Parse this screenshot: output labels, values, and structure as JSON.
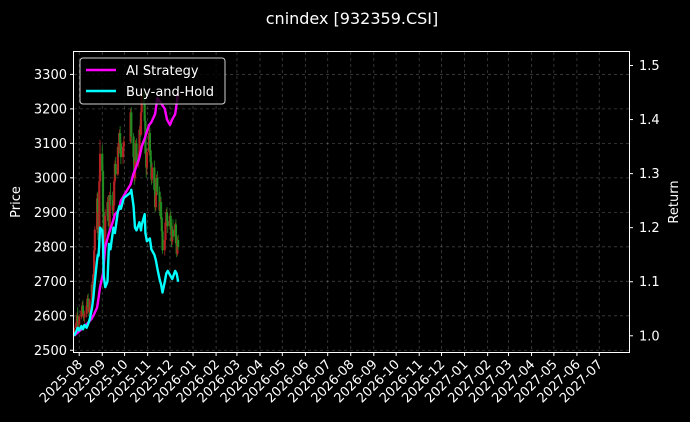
{
  "chart_data": {
    "type": "line",
    "title": "cnindex [932359.CSI]",
    "xlabel": "",
    "ylabel": "Price",
    "y2label": "Return",
    "x_ticks": [
      "2025-08",
      "2025-09",
      "2025-10",
      "2025-11",
      "2025-12",
      "2026-01",
      "2026-02",
      "2026-03",
      "2026-04",
      "2026-05",
      "2026-06",
      "2026-07",
      "2026-08",
      "2026-09",
      "2026-10",
      "2026-11",
      "2026-12",
      "2027-01",
      "2027-02",
      "2027-03",
      "2027-04",
      "2027-05",
      "2027-06",
      "2027-07"
    ],
    "xlim": [
      "2025-07-25",
      "2027-08-10"
    ],
    "ylim": [
      2495,
      3365
    ],
    "y_ticks": [
      2500,
      2600,
      2700,
      2800,
      2900,
      3000,
      3100,
      3200,
      3300
    ],
    "y2lim": [
      0.97,
      1.525
    ],
    "y2_ticks": [
      "1.0",
      "1.1",
      "1.2",
      "1.3",
      "1.4",
      "1.5"
    ],
    "grid": true,
    "legend_position": "top-left",
    "candles": {
      "colors": {
        "up": "#b22222",
        "down": "#228b22"
      },
      "bars": [
        {
          "date": "2025-07-25",
          "open": 2550,
          "high": 2572,
          "low": 2540,
          "close": 2565
        },
        {
          "date": "2025-07-28",
          "open": 2565,
          "high": 2590,
          "low": 2555,
          "close": 2580
        },
        {
          "date": "2025-07-29",
          "open": 2580,
          "high": 2610,
          "low": 2570,
          "close": 2600
        },
        {
          "date": "2025-07-30",
          "open": 2600,
          "high": 2625,
          "low": 2570,
          "close": 2585
        },
        {
          "date": "2025-07-31",
          "open": 2585,
          "high": 2600,
          "low": 2560,
          "close": 2575
        },
        {
          "date": "2025-08-01",
          "open": 2575,
          "high": 2605,
          "low": 2565,
          "close": 2598
        },
        {
          "date": "2025-08-04",
          "open": 2598,
          "high": 2625,
          "low": 2590,
          "close": 2615
        },
        {
          "date": "2025-08-05",
          "open": 2615,
          "high": 2640,
          "low": 2600,
          "close": 2630
        },
        {
          "date": "2025-08-06",
          "open": 2630,
          "high": 2645,
          "low": 2600,
          "close": 2610
        },
        {
          "date": "2025-08-07",
          "open": 2610,
          "high": 2620,
          "low": 2585,
          "close": 2595
        },
        {
          "date": "2025-08-08",
          "open": 2595,
          "high": 2615,
          "low": 2580,
          "close": 2605
        },
        {
          "date": "2025-08-11",
          "open": 2605,
          "high": 2640,
          "low": 2595,
          "close": 2630
        },
        {
          "date": "2025-08-12",
          "open": 2630,
          "high": 2660,
          "low": 2620,
          "close": 2650
        },
        {
          "date": "2025-08-13",
          "open": 2650,
          "high": 2665,
          "low": 2615,
          "close": 2625
        },
        {
          "date": "2025-08-14",
          "open": 2625,
          "high": 2640,
          "low": 2600,
          "close": 2610
        },
        {
          "date": "2025-08-15",
          "open": 2610,
          "high": 2650,
          "low": 2605,
          "close": 2645
        },
        {
          "date": "2025-08-18",
          "open": 2645,
          "high": 2700,
          "low": 2635,
          "close": 2690
        },
        {
          "date": "2025-08-19",
          "open": 2690,
          "high": 2720,
          "low": 2660,
          "close": 2670
        },
        {
          "date": "2025-08-20",
          "open": 2670,
          "high": 2730,
          "low": 2665,
          "close": 2720
        },
        {
          "date": "2025-08-21",
          "open": 2720,
          "high": 2800,
          "low": 2710,
          "close": 2790
        },
        {
          "date": "2025-08-22",
          "open": 2790,
          "high": 2860,
          "low": 2770,
          "close": 2850
        },
        {
          "date": "2025-08-25",
          "open": 2850,
          "high": 2955,
          "low": 2840,
          "close": 2940
        },
        {
          "date": "2025-08-26",
          "open": 2940,
          "high": 2960,
          "low": 2880,
          "close": 2900
        },
        {
          "date": "2025-08-27",
          "open": 2900,
          "high": 2935,
          "low": 2800,
          "close": 2820
        },
        {
          "date": "2025-08-28",
          "open": 2820,
          "high": 3010,
          "low": 2815,
          "close": 2990
        },
        {
          "date": "2025-08-29",
          "open": 2990,
          "high": 3110,
          "low": 2980,
          "close": 3070
        },
        {
          "date": "2025-09-01",
          "open": 3070,
          "high": 3095,
          "low": 3000,
          "close": 3020
        },
        {
          "date": "2025-09-02",
          "open": 3020,
          "high": 3040,
          "low": 2880,
          "close": 2900
        },
        {
          "date": "2025-09-03",
          "open": 2900,
          "high": 2920,
          "low": 2790,
          "close": 2810
        },
        {
          "date": "2025-09-04",
          "open": 2810,
          "high": 2850,
          "low": 2760,
          "close": 2830
        },
        {
          "date": "2025-09-05",
          "open": 2830,
          "high": 2910,
          "low": 2820,
          "close": 2890
        },
        {
          "date": "2025-09-08",
          "open": 2890,
          "high": 2945,
          "low": 2875,
          "close": 2930
        },
        {
          "date": "2025-09-09",
          "open": 2930,
          "high": 2950,
          "low": 2860,
          "close": 2875
        },
        {
          "date": "2025-09-10",
          "open": 2875,
          "high": 2900,
          "low": 2840,
          "close": 2860
        },
        {
          "date": "2025-09-11",
          "open": 2860,
          "high": 2960,
          "low": 2855,
          "close": 2950
        },
        {
          "date": "2025-09-12",
          "open": 2950,
          "high": 2985,
          "low": 2920,
          "close": 2935
        },
        {
          "date": "2025-09-15",
          "open": 2935,
          "high": 2960,
          "low": 2890,
          "close": 2905
        },
        {
          "date": "2025-09-16",
          "open": 2905,
          "high": 2930,
          "low": 2870,
          "close": 2920
        },
        {
          "date": "2025-09-17",
          "open": 2920,
          "high": 3000,
          "low": 2910,
          "close": 2990
        },
        {
          "date": "2025-09-18",
          "open": 2990,
          "high": 3050,
          "low": 2980,
          "close": 3040
        },
        {
          "date": "2025-09-19",
          "open": 3040,
          "high": 3060,
          "low": 3000,
          "close": 3010
        },
        {
          "date": "2025-09-22",
          "open": 3010,
          "high": 3100,
          "low": 3005,
          "close": 3090
        },
        {
          "date": "2025-09-23",
          "open": 3090,
          "high": 3130,
          "low": 3060,
          "close": 3080
        },
        {
          "date": "2025-09-24",
          "open": 3080,
          "high": 3140,
          "low": 3070,
          "close": 3130
        },
        {
          "date": "2025-09-25",
          "open": 3130,
          "high": 3150,
          "low": 3090,
          "close": 3100
        },
        {
          "date": "2025-09-26",
          "open": 3100,
          "high": 3110,
          "low": 3040,
          "close": 3060
        },
        {
          "date": "2025-09-29",
          "open": 3060,
          "high": 3100,
          "low": 3040,
          "close": 3090
        },
        {
          "date": "2025-09-30",
          "open": 3090,
          "high": 3120,
          "low": 3070,
          "close": 3105
        },
        {
          "date": "2025-10-09",
          "open": 3105,
          "high": 3200,
          "low": 3100,
          "close": 3190
        },
        {
          "date": "2025-10-10",
          "open": 3190,
          "high": 3205,
          "low": 3100,
          "close": 3120
        },
        {
          "date": "2025-10-13",
          "open": 3120,
          "high": 3130,
          "low": 3040,
          "close": 3060
        },
        {
          "date": "2025-10-14",
          "open": 3060,
          "high": 3080,
          "low": 2980,
          "close": 3000
        },
        {
          "date": "2025-10-15",
          "open": 3000,
          "high": 3060,
          "low": 2990,
          "close": 3050
        },
        {
          "date": "2025-10-16",
          "open": 3050,
          "high": 3110,
          "low": 3040,
          "close": 3100
        },
        {
          "date": "2025-10-17",
          "open": 3100,
          "high": 3115,
          "low": 3030,
          "close": 3045
        },
        {
          "date": "2025-10-20",
          "open": 3045,
          "high": 3080,
          "low": 3030,
          "close": 3070
        },
        {
          "date": "2025-10-21",
          "open": 3070,
          "high": 3150,
          "low": 3065,
          "close": 3140
        },
        {
          "date": "2025-10-22",
          "open": 3140,
          "high": 3170,
          "low": 3110,
          "close": 3125
        },
        {
          "date": "2025-10-23",
          "open": 3125,
          "high": 3200,
          "low": 3120,
          "close": 3190
        },
        {
          "date": "2025-10-24",
          "open": 3190,
          "high": 3260,
          "low": 3180,
          "close": 3245
        },
        {
          "date": "2025-10-27",
          "open": 3245,
          "high": 3275,
          "low": 3200,
          "close": 3215
        },
        {
          "date": "2025-10-28",
          "open": 3215,
          "high": 3240,
          "low": 3150,
          "close": 3165
        },
        {
          "date": "2025-10-29",
          "open": 3165,
          "high": 3180,
          "low": 3050,
          "close": 3070
        },
        {
          "date": "2025-10-30",
          "open": 3070,
          "high": 3090,
          "low": 3000,
          "close": 3030
        },
        {
          "date": "2025-10-31",
          "open": 3030,
          "high": 3085,
          "low": 3010,
          "close": 3075
        },
        {
          "date": "2025-11-03",
          "open": 3075,
          "high": 3140,
          "low": 3065,
          "close": 3130
        },
        {
          "date": "2025-11-04",
          "open": 3130,
          "high": 3145,
          "low": 3070,
          "close": 3080
        },
        {
          "date": "2025-11-05",
          "open": 3080,
          "high": 3100,
          "low": 3030,
          "close": 3045
        },
        {
          "date": "2025-11-06",
          "open": 3045,
          "high": 3060,
          "low": 2980,
          "close": 2995
        },
        {
          "date": "2025-11-07",
          "open": 2995,
          "high": 3040,
          "low": 2985,
          "close": 3030
        },
        {
          "date": "2025-11-10",
          "open": 3030,
          "high": 3050,
          "low": 2950,
          "close": 2965
        },
        {
          "date": "2025-11-11",
          "open": 2965,
          "high": 2980,
          "low": 2900,
          "close": 2915
        },
        {
          "date": "2025-11-12",
          "open": 2915,
          "high": 2960,
          "low": 2905,
          "close": 2950
        },
        {
          "date": "2025-11-13",
          "open": 2950,
          "high": 3010,
          "low": 2940,
          "close": 3000
        },
        {
          "date": "2025-11-14",
          "open": 3000,
          "high": 3020,
          "low": 2950,
          "close": 2960
        },
        {
          "date": "2025-11-17",
          "open": 2960,
          "high": 2975,
          "low": 2890,
          "close": 2905
        },
        {
          "date": "2025-11-18",
          "open": 2905,
          "high": 2940,
          "low": 2880,
          "close": 2930
        },
        {
          "date": "2025-11-19",
          "open": 2930,
          "high": 2945,
          "low": 2870,
          "close": 2885
        },
        {
          "date": "2025-11-20",
          "open": 2885,
          "high": 2900,
          "low": 2830,
          "close": 2845
        },
        {
          "date": "2025-11-21",
          "open": 2845,
          "high": 2860,
          "low": 2780,
          "close": 2790
        },
        {
          "date": "2025-11-24",
          "open": 2790,
          "high": 2830,
          "low": 2775,
          "close": 2820
        },
        {
          "date": "2025-11-25",
          "open": 2820,
          "high": 2880,
          "low": 2810,
          "close": 2870
        },
        {
          "date": "2025-11-26",
          "open": 2870,
          "high": 2910,
          "low": 2855,
          "close": 2900
        },
        {
          "date": "2025-11-27",
          "open": 2900,
          "high": 2915,
          "low": 2860,
          "close": 2875
        },
        {
          "date": "2025-11-28",
          "open": 2875,
          "high": 2890,
          "low": 2840,
          "close": 2860
        },
        {
          "date": "2025-12-01",
          "open": 2860,
          "high": 2900,
          "low": 2850,
          "close": 2890
        },
        {
          "date": "2025-12-02",
          "open": 2890,
          "high": 2905,
          "low": 2840,
          "close": 2850
        },
        {
          "date": "2025-12-03",
          "open": 2850,
          "high": 2870,
          "low": 2800,
          "close": 2815
        },
        {
          "date": "2025-12-04",
          "open": 2815,
          "high": 2860,
          "low": 2805,
          "close": 2850
        },
        {
          "date": "2025-12-05",
          "open": 2850,
          "high": 2880,
          "low": 2820,
          "close": 2830
        },
        {
          "date": "2025-12-08",
          "open": 2830,
          "high": 2870,
          "low": 2820,
          "close": 2865
        },
        {
          "date": "2025-12-09",
          "open": 2865,
          "high": 2880,
          "low": 2800,
          "close": 2810
        },
        {
          "date": "2025-12-10",
          "open": 2810,
          "high": 2830,
          "low": 2770,
          "close": 2780
        },
        {
          "date": "2025-12-11",
          "open": 2780,
          "high": 2830,
          "low": 2775,
          "close": 2820
        },
        {
          "date": "2025-12-12",
          "open": 2820,
          "high": 2835,
          "low": 2790,
          "close": 2800
        }
      ]
    },
    "series": [
      {
        "name": "AI Strategy",
        "color": "#ff00ff",
        "axis": "right",
        "x": [
          "2025-07-25",
          "2025-07-30",
          "2025-08-04",
          "2025-08-08",
          "2025-08-13",
          "2025-08-18",
          "2025-08-21",
          "2025-08-25",
          "2025-08-27",
          "2025-08-29",
          "2025-09-02",
          "2025-09-05",
          "2025-09-10",
          "2025-09-15",
          "2025-09-18",
          "2025-09-23",
          "2025-09-26",
          "2025-10-09",
          "2025-10-13",
          "2025-10-16",
          "2025-10-21",
          "2025-10-24",
          "2025-10-28",
          "2025-11-03",
          "2025-11-06",
          "2025-11-11",
          "2025-11-14",
          "2025-11-19",
          "2025-11-24",
          "2025-11-27",
          "2025-12-01",
          "2025-12-04",
          "2025-12-08",
          "2025-12-12"
        ],
        "y": [
          1.0,
          1.006,
          1.012,
          1.018,
          1.024,
          1.032,
          1.04,
          1.052,
          1.07,
          1.09,
          1.115,
          1.165,
          1.19,
          1.21,
          1.225,
          1.232,
          1.25,
          1.28,
          1.3,
          1.31,
          1.33,
          1.35,
          1.365,
          1.39,
          1.395,
          1.41,
          1.44,
          1.43,
          1.42,
          1.4,
          1.39,
          1.4,
          1.41,
          1.45
        ]
      },
      {
        "name": "Buy-and-Hold",
        "color": "#00ffff",
        "axis": "right",
        "x": [
          "2025-07-25",
          "2025-07-28",
          "2025-07-30",
          "2025-08-01",
          "2025-08-04",
          "2025-08-06",
          "2025-08-08",
          "2025-08-11",
          "2025-08-13",
          "2025-08-15",
          "2025-08-18",
          "2025-08-20",
          "2025-08-22",
          "2025-08-25",
          "2025-08-26",
          "2025-08-27",
          "2025-08-28",
          "2025-08-29",
          "2025-09-01",
          "2025-09-02",
          "2025-09-03",
          "2025-09-05",
          "2025-09-08",
          "2025-09-10",
          "2025-09-12",
          "2025-09-16",
          "2025-09-18",
          "2025-09-22",
          "2025-09-24",
          "2025-09-26",
          "2025-09-30",
          "2025-10-09",
          "2025-10-10",
          "2025-10-13",
          "2025-10-15",
          "2025-10-17",
          "2025-10-21",
          "2025-10-23",
          "2025-10-24",
          "2025-10-27",
          "2025-10-28",
          "2025-10-29",
          "2025-10-31",
          "2025-11-04",
          "2025-11-06",
          "2025-11-10",
          "2025-11-12",
          "2025-11-14",
          "2025-11-17",
          "2025-11-19",
          "2025-11-21",
          "2025-11-24",
          "2025-11-26",
          "2025-11-28",
          "2025-12-02",
          "2025-12-04",
          "2025-12-08",
          "2025-12-10",
          "2025-12-12"
        ],
        "y": [
          1.0,
          1.008,
          1.015,
          1.01,
          1.018,
          1.012,
          1.02,
          1.015,
          1.022,
          1.03,
          1.05,
          1.07,
          1.1,
          1.14,
          1.15,
          1.148,
          1.17,
          1.2,
          1.195,
          1.17,
          1.11,
          1.09,
          1.1,
          1.17,
          1.16,
          1.2,
          1.19,
          1.23,
          1.24,
          1.235,
          1.255,
          1.265,
          1.27,
          1.24,
          1.2,
          1.195,
          1.21,
          1.195,
          1.205,
          1.22,
          1.225,
          1.19,
          1.175,
          1.18,
          1.16,
          1.15,
          1.14,
          1.125,
          1.105,
          1.095,
          1.08,
          1.1,
          1.115,
          1.12,
          1.11,
          1.105,
          1.12,
          1.115,
          1.1
        ]
      }
    ]
  }
}
